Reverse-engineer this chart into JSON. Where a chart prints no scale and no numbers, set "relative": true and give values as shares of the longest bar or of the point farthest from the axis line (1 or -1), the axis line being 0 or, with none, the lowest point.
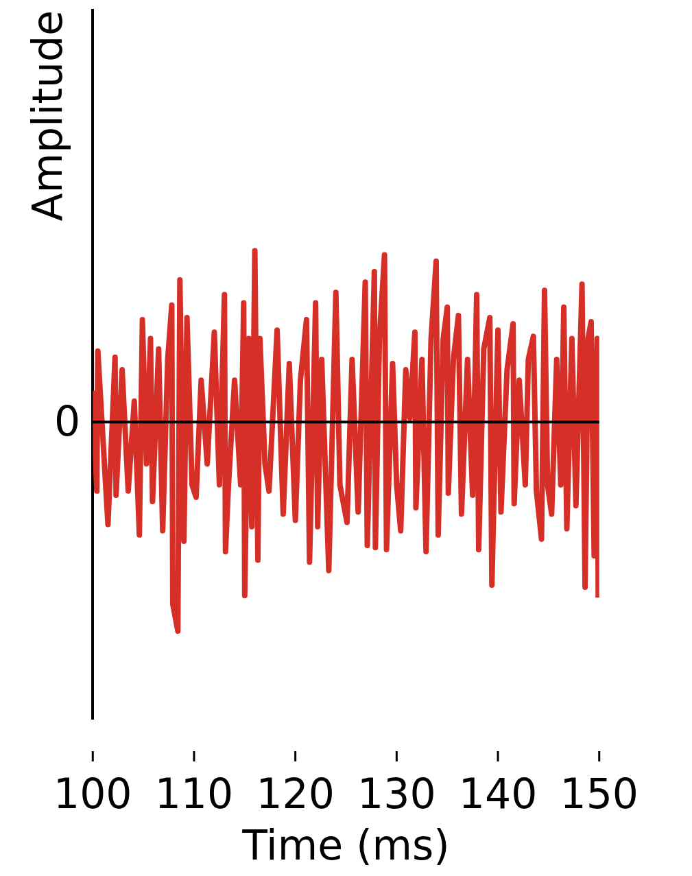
{
  "chart_data": {
    "type": "line",
    "xlabel": "Time (ms)",
    "ylabel": "Amplitude",
    "relative": true,
    "color": "#d62f27",
    "xlim": [
      100,
      150
    ],
    "xticks": [
      100,
      110,
      120,
      130,
      140,
      150
    ],
    "ref_lines": [
      {
        "axis": "y",
        "value": 0,
        "label": "0",
        "color": "#000000"
      }
    ],
    "x": [
      100.0,
      100.4,
      100.5,
      101.5,
      102.2,
      102.3,
      102.9,
      103.5,
      104.1,
      104.6,
      104.9,
      105.3,
      105.7,
      105.9,
      106.5,
      106.9,
      107.4,
      107.8,
      107.9,
      108.4,
      108.6,
      109.0,
      109.3,
      109.8,
      110.2,
      110.7,
      111.3,
      112.0,
      112.5,
      113.0,
      113.1,
      113.4,
      114.0,
      114.6,
      114.9,
      115.0,
      115.4,
      115.7,
      116.0,
      116.3,
      116.5,
      117.0,
      117.4,
      118.2,
      118.8,
      119.4,
      120.0,
      120.5,
      121.1,
      121.4,
      122.0,
      122.2,
      122.6,
      123.3,
      124.0,
      124.4,
      125.1,
      125.6,
      126.2,
      126.9,
      127.1,
      127.8,
      127.9,
      128.3,
      128.8,
      129.0,
      129.6,
      130.0,
      130.4,
      130.9,
      131.3,
      131.8,
      131.9,
      132.5,
      132.9,
      133.4,
      133.9,
      134.1,
      134.6,
      135.0,
      135.1,
      135.6,
      136.1,
      136.4,
      137.0,
      137.5,
      137.9,
      138.1,
      138.6,
      139.2,
      139.4,
      140.0,
      140.3,
      140.9,
      141.5,
      141.6,
      142.1,
      142.7,
      143.0,
      143.5,
      143.8,
      144.3,
      144.6,
      144.9,
      145.3,
      145.8,
      146.2,
      146.5,
      146.8,
      147.3,
      147.7,
      148.3,
      148.6,
      148.9,
      149.2,
      149.5,
      149.8,
      149.9
    ],
    "values": [
      0.15,
      -0.33,
      0.34,
      -0.49,
      0.31,
      -0.35,
      0.25,
      -0.33,
      0.1,
      -0.54,
      0.49,
      -0.2,
      0.4,
      -0.38,
      0.35,
      -0.52,
      0.3,
      0.56,
      -0.87,
      -1,
      0.68,
      -0.57,
      0.5,
      -0.3,
      -0.36,
      0.2,
      -0.2,
      0.43,
      -0.3,
      0.61,
      -0.62,
      -0.3,
      0.2,
      -0.3,
      0.57,
      -0.83,
      0.4,
      -0.5,
      0.82,
      -0.66,
      0.4,
      -0.2,
      -0.33,
      0.44,
      -0.44,
      0.28,
      -0.47,
      0.2,
      0.49,
      -0.67,
      0.57,
      -0.5,
      0.3,
      -0.71,
      0.62,
      -0.3,
      -0.48,
      0.3,
      -0.43,
      0.67,
      -0.59,
      0.72,
      -0.6,
      0.4,
      0.8,
      -0.61,
      0.28,
      -0.3,
      -0.52,
      0.25,
      0.02,
      0.43,
      -0.41,
      0.3,
      -0.62,
      0.4,
      0.77,
      -0.54,
      0.4,
      0.55,
      -0.34,
      0.3,
      0.51,
      -0.44,
      0.3,
      -0.35,
      0.61,
      -0.61,
      0.35,
      0.5,
      -0.78,
      0.44,
      -0.43,
      0.25,
      0.47,
      -0.39,
      0.2,
      -0.3,
      0.3,
      0.41,
      -0.33,
      -0.56,
      0.63,
      -0.3,
      -0.44,
      0.3,
      -0.3,
      0.55,
      -0.51,
      0.4,
      -0.4,
      0.66,
      -0.79,
      0.4,
      0.48,
      -0.64,
      0.4,
      -0.84
    ]
  }
}
